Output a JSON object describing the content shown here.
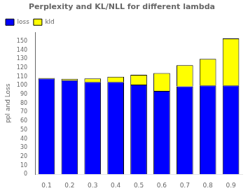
{
  "chart_data": {
    "type": "bar",
    "title": "Perplexity and KL/NLL for different lambda",
    "ylabel": "ppl and Loss",
    "categories": [
      "0.1",
      "0.2",
      "0.3",
      "0.4",
      "0.5",
      "0.6",
      "0.7",
      "0.8",
      "0.9"
    ],
    "series": [
      {
        "name": "loss",
        "color": "#0000ff",
        "values": [
          108,
          106,
          104,
          104,
          101,
          94,
          99,
          100,
          100
        ]
      },
      {
        "name": "kld",
        "color": "#ffff00",
        "values": [
          0.5,
          1.5,
          4,
          6,
          11,
          20,
          24,
          30,
          53
        ]
      }
    ],
    "ylim": [
      0,
      160
    ],
    "yticks": [
      0,
      10,
      20,
      30,
      40,
      50,
      60,
      70,
      80,
      90,
      100,
      110,
      120,
      130,
      140,
      150
    ],
    "stacked": true,
    "grid": false,
    "legend": "upper left"
  }
}
